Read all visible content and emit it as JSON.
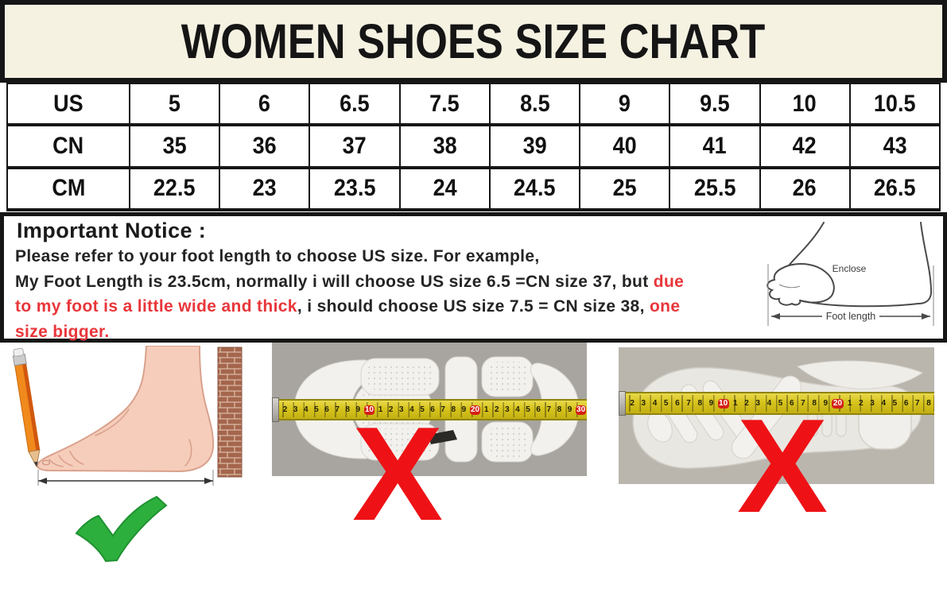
{
  "title": "WOMEN SHOES SIZE CHART",
  "size_table": {
    "rows": [
      {
        "label": "US",
        "values": [
          "5",
          "6",
          "6.5",
          "7.5",
          "8.5",
          "9",
          "9.5",
          "10",
          "10.5"
        ]
      },
      {
        "label": "CN",
        "values": [
          "35",
          "36",
          "37",
          "38",
          "39",
          "40",
          "41",
          "42",
          "43"
        ]
      },
      {
        "label": "CM",
        "values": [
          "22.5",
          "23",
          "23.5",
          "24",
          "24.5",
          "25",
          "25.5",
          "26",
          "26.5"
        ]
      }
    ]
  },
  "chart_data": {
    "type": "table",
    "title": "WOMEN SHOES SIZE CHART",
    "row_headers": [
      "US",
      "CN",
      "CM"
    ],
    "rows": [
      [
        "5",
        "6",
        "6.5",
        "7.5",
        "8.5",
        "9",
        "9.5",
        "10",
        "10.5"
      ],
      [
        "35",
        "36",
        "37",
        "38",
        "39",
        "40",
        "41",
        "42",
        "43"
      ],
      [
        "22.5",
        "23",
        "23.5",
        "24",
        "24.5",
        "25",
        "25.5",
        "26",
        "26.5"
      ]
    ]
  },
  "notice": {
    "heading": "Important Notice :",
    "lines": [
      [
        {
          "text": "Please refer to your foot length to choose US size. For example,",
          "color": "black"
        }
      ],
      [
        {
          "text": "My Foot Length is 23.5cm, normally i will choose US size 6.5 =CN size 37, but ",
          "color": "black"
        },
        {
          "text": "due",
          "color": "red"
        }
      ],
      [
        {
          "text": "to my foot is a little wide and thick",
          "color": "red"
        },
        {
          "text": ", i should choose US size 7.5 = CN size 38, ",
          "color": "black"
        },
        {
          "text": "one",
          "color": "red"
        }
      ],
      [
        {
          "text": "size bigger.",
          "color": "red"
        }
      ]
    ],
    "foot_diagram": {
      "enclose_label": "Enclose",
      "foot_length_label": "Foot length"
    }
  },
  "figures": {
    "correct_method": {
      "mark": "check",
      "description-icon": "green-check"
    },
    "wrong_sole": {
      "mark": "X",
      "tape_numbers": [
        "2",
        "3",
        "4",
        "5",
        "6",
        "7",
        "8",
        "9",
        "10",
        "1",
        "2",
        "3",
        "4",
        "5",
        "6",
        "7",
        "8",
        "9",
        "20",
        "1",
        "2",
        "3",
        "4",
        "5",
        "6",
        "7",
        "8",
        "9",
        "30"
      ]
    },
    "wrong_insole": {
      "mark": "X",
      "tape_numbers": [
        "2",
        "3",
        "4",
        "5",
        "6",
        "7",
        "8",
        "9",
        "10",
        "1",
        "2",
        "3",
        "4",
        "5",
        "6",
        "7",
        "8",
        "9",
        "20",
        "1",
        "2",
        "3",
        "4",
        "5",
        "6",
        "7",
        "8"
      ]
    }
  },
  "colors": {
    "title_bg": "#f5f2e2",
    "red_text": "#e8363a",
    "x_red": "#ee1216",
    "check_green": "#2daf3d",
    "check_green_dark": "#1f9130",
    "tape_yellow": "#d7c41c",
    "tape_edge": "#8f8410",
    "photo_grey_mid": "#a8a5a0",
    "photo_grey_right": "#bab6ae",
    "brick_red": "#a4664d",
    "brick_mortar": "#dcb9a4",
    "skin": "#f6cdbb",
    "skin_outline": "#d9a18c",
    "sole_white": "#f2f1ed",
    "sketch_ink": "#4a4a4a"
  }
}
